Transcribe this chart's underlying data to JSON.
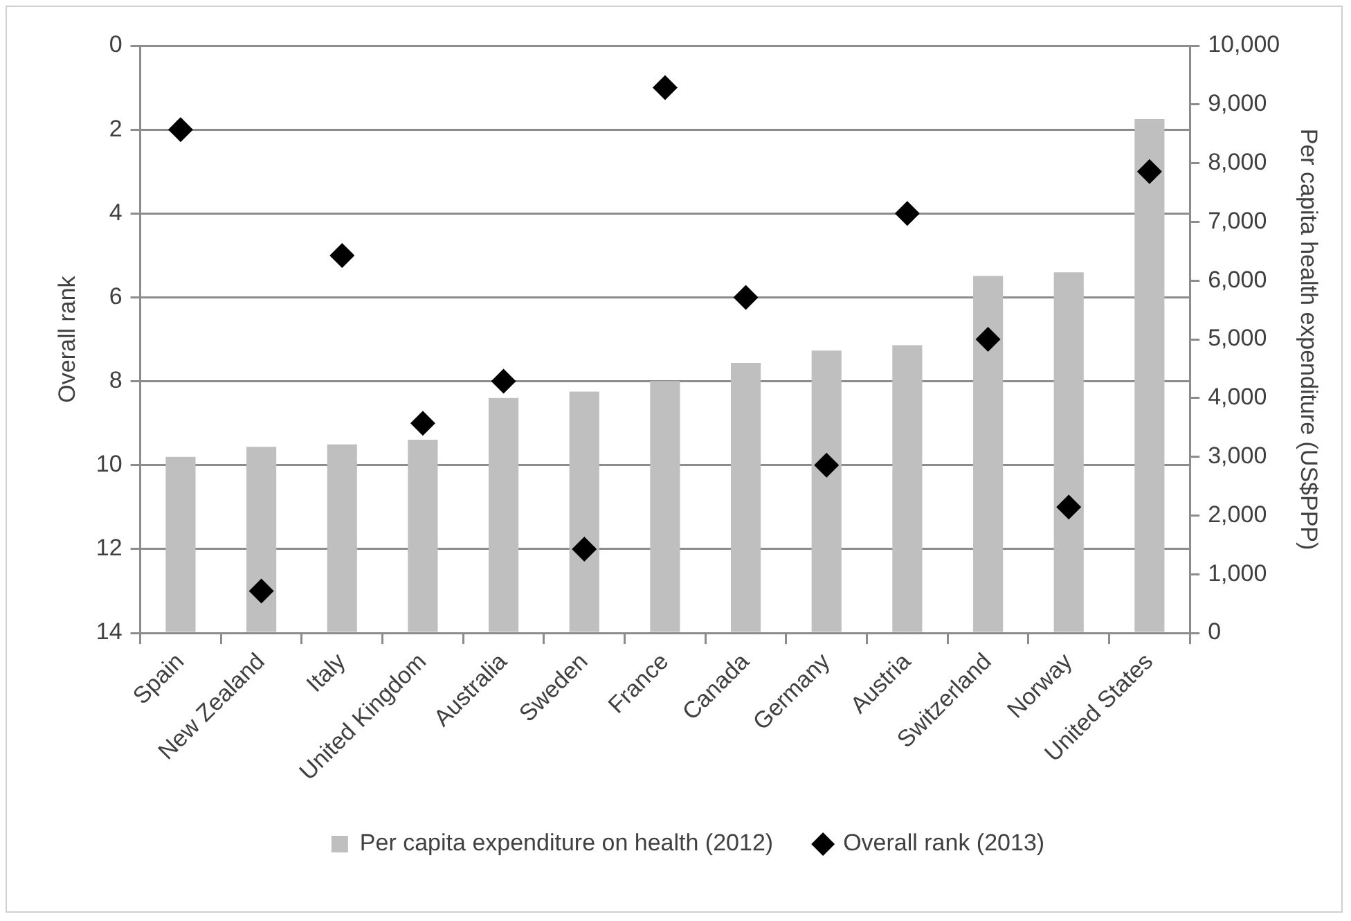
{
  "chart_data": {
    "type": "bar",
    "xlabel": null,
    "ylabel": "Overall rank",
    "y2label": "Per capita health expenditure (US$PPP)",
    "categories": [
      "Spain",
      "New Zealand",
      "Italy",
      "United Kingdom",
      "Australia",
      "Sweden",
      "France",
      "Canada",
      "Germany",
      "Austria",
      "Switzerland",
      "Norway",
      "United States"
    ],
    "series": [
      {
        "name": "Per capita expenditure on health (2012)",
        "axis": "y2",
        "color": "#bfbfbf",
        "values": [
          3000,
          3170,
          3210,
          3290,
          4000,
          4110,
          4290,
          4600,
          4810,
          4900,
          6080,
          6140,
          8750
        ]
      },
      {
        "name": "Overall rank (2013)",
        "type": "scatter",
        "marker": "diamond",
        "color": "#000000",
        "values": [
          2,
          13,
          5,
          9,
          8,
          12,
          1,
          6,
          10,
          4,
          7,
          11,
          3
        ]
      }
    ],
    "ylim": [
      14,
      0
    ],
    "yticks": [
      0,
      2,
      4,
      6,
      8,
      10,
      12,
      14
    ],
    "y2lim": [
      0,
      10000
    ],
    "y2ticks": [
      0,
      {
        "value": 1000,
        "label": "1,000"
      },
      {
        "value": 2000,
        "label": "2,000"
      },
      {
        "value": 3000,
        "label": "3,000"
      },
      {
        "value": 4000,
        "label": "4,000"
      },
      {
        "value": 5000,
        "label": "5,000"
      },
      {
        "value": 6000,
        "label": "6,000"
      },
      {
        "value": 7000,
        "label": "7,000"
      },
      {
        "value": 8000,
        "label": "8,000"
      },
      {
        "value": 9000,
        "label": "9,000"
      },
      {
        "value": 10000,
        "label": "10,000"
      }
    ],
    "grid": "y",
    "legend": "bottom"
  }
}
